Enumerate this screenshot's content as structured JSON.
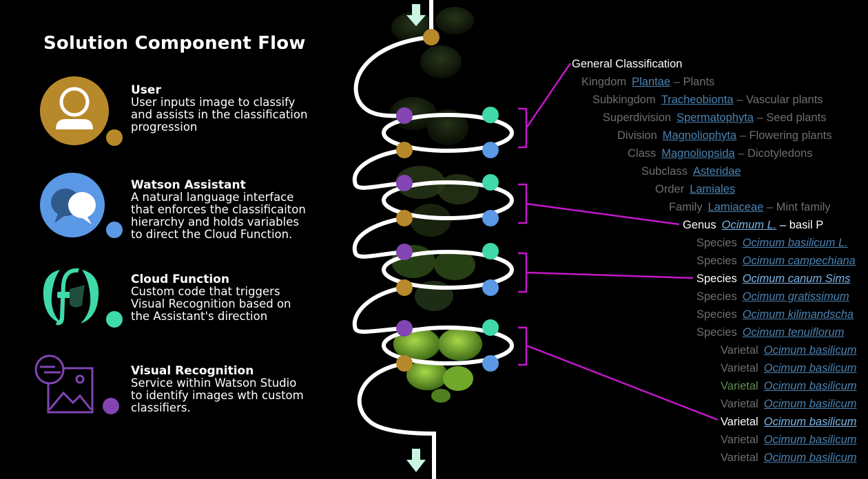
{
  "title": "Solution Component Flow",
  "colors": {
    "user": "#b8892a",
    "watson": "#5b98e6",
    "cloud": "#40d9aa",
    "visual": "#8245b3",
    "connector": "#c318c9"
  },
  "components": [
    {
      "name": "User",
      "icon": "user-icon",
      "description": [
        "User inputs image to classify",
        "and assists in the classification",
        "progression"
      ]
    },
    {
      "name": "Watson Assistant",
      "icon": "chat-bubbles-icon",
      "description": [
        "A natural language interface",
        "that enforces the classificaiton",
        "hierarchy and holds variables",
        "to direct the Cloud Function."
      ]
    },
    {
      "name": "Cloud Function",
      "icon": "functions-icon",
      "description": [
        "Custom code that triggers",
        "Visual Recognition based on",
        "the Assistant's direction"
      ]
    },
    {
      "name": "Visual Recognition",
      "icon": "image-recognition-icon",
      "description": [
        "Service within Watson Studio",
        "to identify images wth custom",
        "classifiers."
      ]
    }
  ],
  "taxonomy": {
    "heading": "General Classification",
    "rows": [
      {
        "rank": "Kingdom",
        "link": "Plantae",
        "suffix": "– Plants"
      },
      {
        "rank": "Subkingdom",
        "link": "Tracheobionta",
        "suffix": "– Vascular plants"
      },
      {
        "rank": "Superdivision",
        "link": "Spermatophyta",
        "suffix": "– Seed plants"
      },
      {
        "rank": "Division",
        "link": "Magnoliophyta",
        "suffix": "– Flowering plants"
      },
      {
        "rank": "Class",
        "link": "Magnoliopsida",
        "suffix": "– Dicotyledons"
      },
      {
        "rank": "Subclass",
        "link": "Asteridae",
        "suffix": ""
      },
      {
        "rank": "Order",
        "link": "Lamiales",
        "suffix": ""
      },
      {
        "rank": "Family",
        "link": "Lamiaceae",
        "suffix": "– Mint family"
      },
      {
        "rank": "Genus",
        "link": "Ocimum L.",
        "suffix": "– basil P"
      },
      {
        "rank": "Species",
        "link": "Ocimum basilicum L.",
        "suffix": ""
      },
      {
        "rank": "Species",
        "link": "Ocimum campechiana",
        "suffix": ""
      },
      {
        "rank": "Species",
        "link": "Ocimum canum Sims",
        "suffix": ""
      },
      {
        "rank": "Species",
        "link": "Ocimum gratissimum",
        "suffix": ""
      },
      {
        "rank": "Species",
        "link": "Ocimum kilimandscha",
        "suffix": ""
      },
      {
        "rank": "Species",
        "link": "Ocimum tenuiflorum",
        "suffix": ""
      },
      {
        "rank": "Varietal",
        "link": "Ocimum basilicum",
        "suffix": ""
      },
      {
        "rank": "Varietal",
        "link": "Ocimum basilicum",
        "suffix": ""
      },
      {
        "rank": "Varietal",
        "link": "Ocimum basilicum",
        "suffix": ""
      },
      {
        "rank": "Varietal",
        "link": "Ocimum basilicum",
        "suffix": ""
      },
      {
        "rank": "Varietal",
        "link": "Ocimum basilicum",
        "suffix": ""
      },
      {
        "rank": "Varietal",
        "link": "Ocimum basilicum",
        "suffix": ""
      },
      {
        "rank": "Varietal",
        "link": "Ocimum basilicum",
        "suffix": ""
      }
    ]
  }
}
